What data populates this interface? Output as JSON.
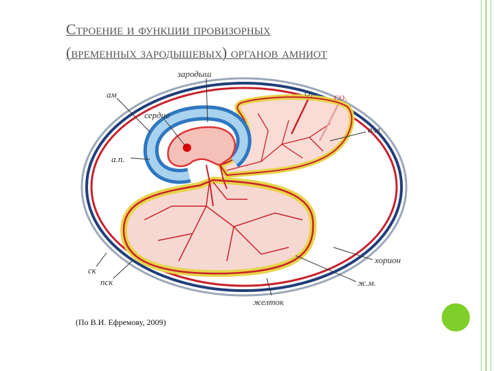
{
  "title_lines": [
    "Строение и функции провизорных",
    "(временных зародышевых) органов амниот"
  ],
  "labels": {
    "embryo": "зародыш",
    "amnion": "ам",
    "heart": "сердце",
    "amniotic_cavity": "а.п.",
    "o2": "O₂",
    "co2": "CO₂",
    "allantois": "алл",
    "chorion": "хорион",
    "yolk_sac": "ж.м.",
    "yolk": "желток",
    "serous_membrane": "ск",
    "subshell_membrane": "пск"
  },
  "caption": "(По В.И. Ефремову, 2009)"
}
